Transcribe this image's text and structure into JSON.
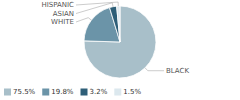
{
  "chart_data": {
    "type": "pie",
    "categories": [
      "BLACK",
      "WHITE",
      "ASIAN",
      "HISPANIC"
    ],
    "values": [
      75.5,
      19.8,
      3.2,
      1.5
    ],
    "value_labels": [
      "75.5%",
      "19.8%",
      "3.2%",
      "1.5%"
    ],
    "colors": [
      "#a8bfc9",
      "#6b94a8",
      "#2e5f78",
      "#dce8ee"
    ],
    "legend": "bottom"
  }
}
